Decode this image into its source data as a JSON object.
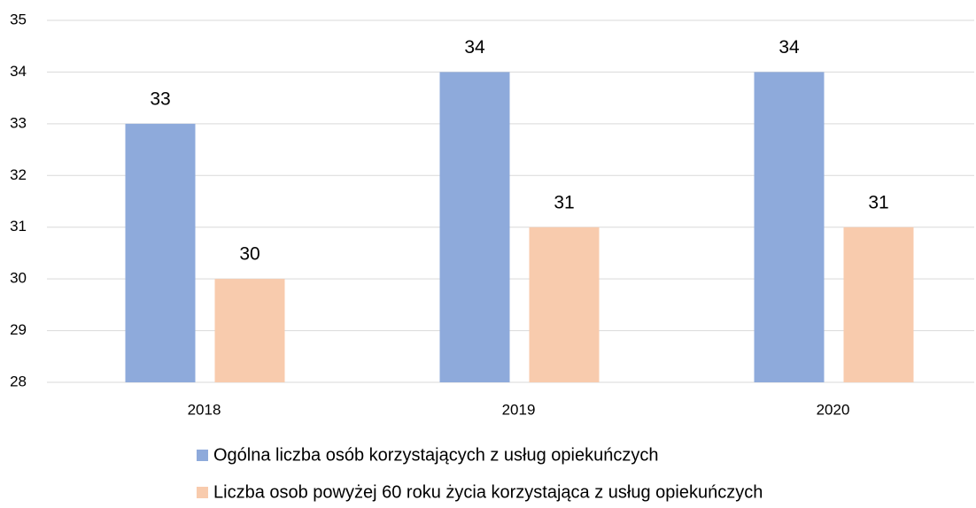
{
  "chart_data": {
    "type": "bar",
    "categories": [
      "2018",
      "2019",
      "2020"
    ],
    "series": [
      {
        "name": "Ogólna liczba osób korzystających z usług opiekuńczych",
        "color": "#8eaadb",
        "values": [
          33,
          34,
          34
        ]
      },
      {
        "name": "Liczba osob powyżej 60 roku życia korzystająca z usług opiekuńczych",
        "color": "#f8cbad",
        "values": [
          30,
          31,
          31
        ]
      }
    ],
    "ylim": [
      28,
      35
    ],
    "yticks": [
      28,
      29,
      30,
      31,
      32,
      33,
      34,
      35
    ],
    "grid": true,
    "legend": "bottom"
  }
}
